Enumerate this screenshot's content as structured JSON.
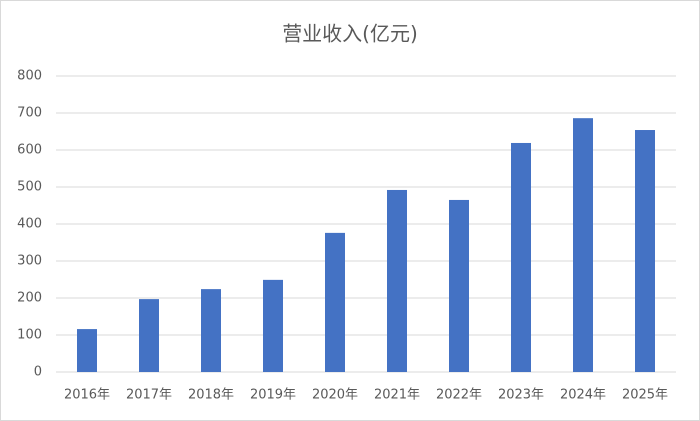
{
  "chart_data": {
    "type": "bar",
    "title": "营业收入(亿元)",
    "categories": [
      "2016年",
      "2017年",
      "2018年",
      "2019年",
      "2020年",
      "2021年",
      "2022年",
      "2023年",
      "2024年",
      "2025年"
    ],
    "values": [
      116,
      197,
      224,
      249,
      376,
      492,
      465,
      619,
      686,
      654
    ],
    "color": "#4472c4",
    "ylim": [
      0,
      800
    ],
    "yticks": [
      0,
      100,
      200,
      300,
      400,
      500,
      600,
      700,
      800
    ],
    "grid": true
  }
}
